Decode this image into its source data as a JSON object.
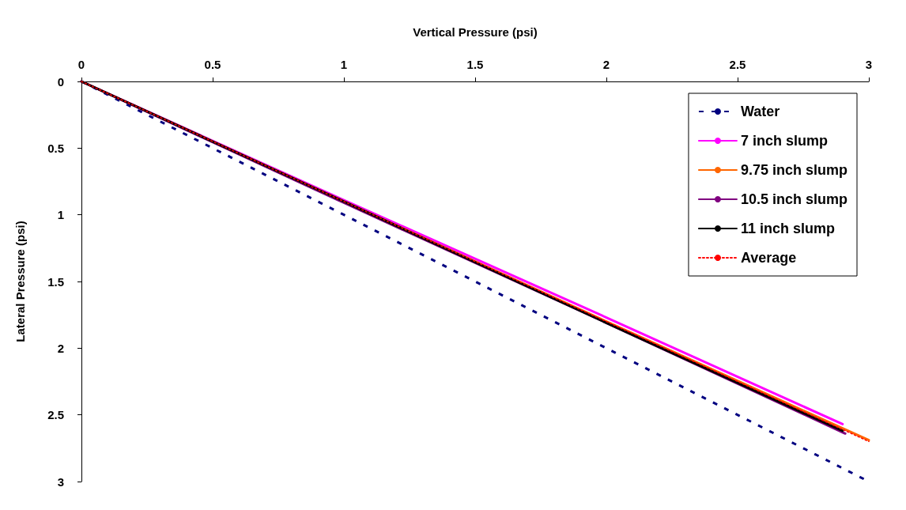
{
  "chart_data": {
    "type": "line",
    "xlabel": "Vertical Pressure (psi)",
    "ylabel": "Lateral Pressure (psi)",
    "xlim": [
      0,
      3
    ],
    "xticks": [
      0,
      0.5,
      1,
      1.5,
      2,
      2.5,
      3
    ],
    "ylim": [
      3,
      0
    ],
    "yticks": [
      0,
      0.5,
      1,
      1.5,
      2,
      2.5,
      3
    ],
    "grid": false,
    "legend": "top right",
    "marker": "none",
    "series": [
      {
        "name": "Water",
        "color": "#000080",
        "line_style": "dashed",
        "x": [
          0,
          1,
          2,
          3
        ],
        "values": [
          0,
          1,
          2,
          3
        ]
      },
      {
        "name": "7 inch slump",
        "color": "#ff00ff",
        "line_style": "solid",
        "x": [
          0,
          1,
          2,
          2.9
        ],
        "values": [
          0,
          0.89,
          1.77,
          2.57
        ]
      },
      {
        "name": "9.75 inch slump",
        "color": "#ff6600",
        "line_style": "solid",
        "x": [
          0,
          1,
          2,
          3
        ],
        "values": [
          0,
          0.9,
          1.8,
          2.69
        ]
      },
      {
        "name": "10.5 inch slump",
        "color": "#800080",
        "line_style": "solid",
        "x": [
          0,
          1,
          2,
          2.91
        ],
        "values": [
          0,
          0.91,
          1.81,
          2.64
        ]
      },
      {
        "name": "11 inch slump",
        "color": "#000000",
        "line_style": "solid",
        "x": [
          0,
          1,
          2,
          2.9
        ],
        "values": [
          0,
          0.9,
          1.81,
          2.62
        ]
      },
      {
        "name": "Average",
        "color": "#ff0000",
        "line_style": "dotted",
        "x": [
          0,
          1,
          2,
          3
        ],
        "values": [
          0,
          0.9,
          1.8,
          2.7
        ]
      }
    ]
  }
}
